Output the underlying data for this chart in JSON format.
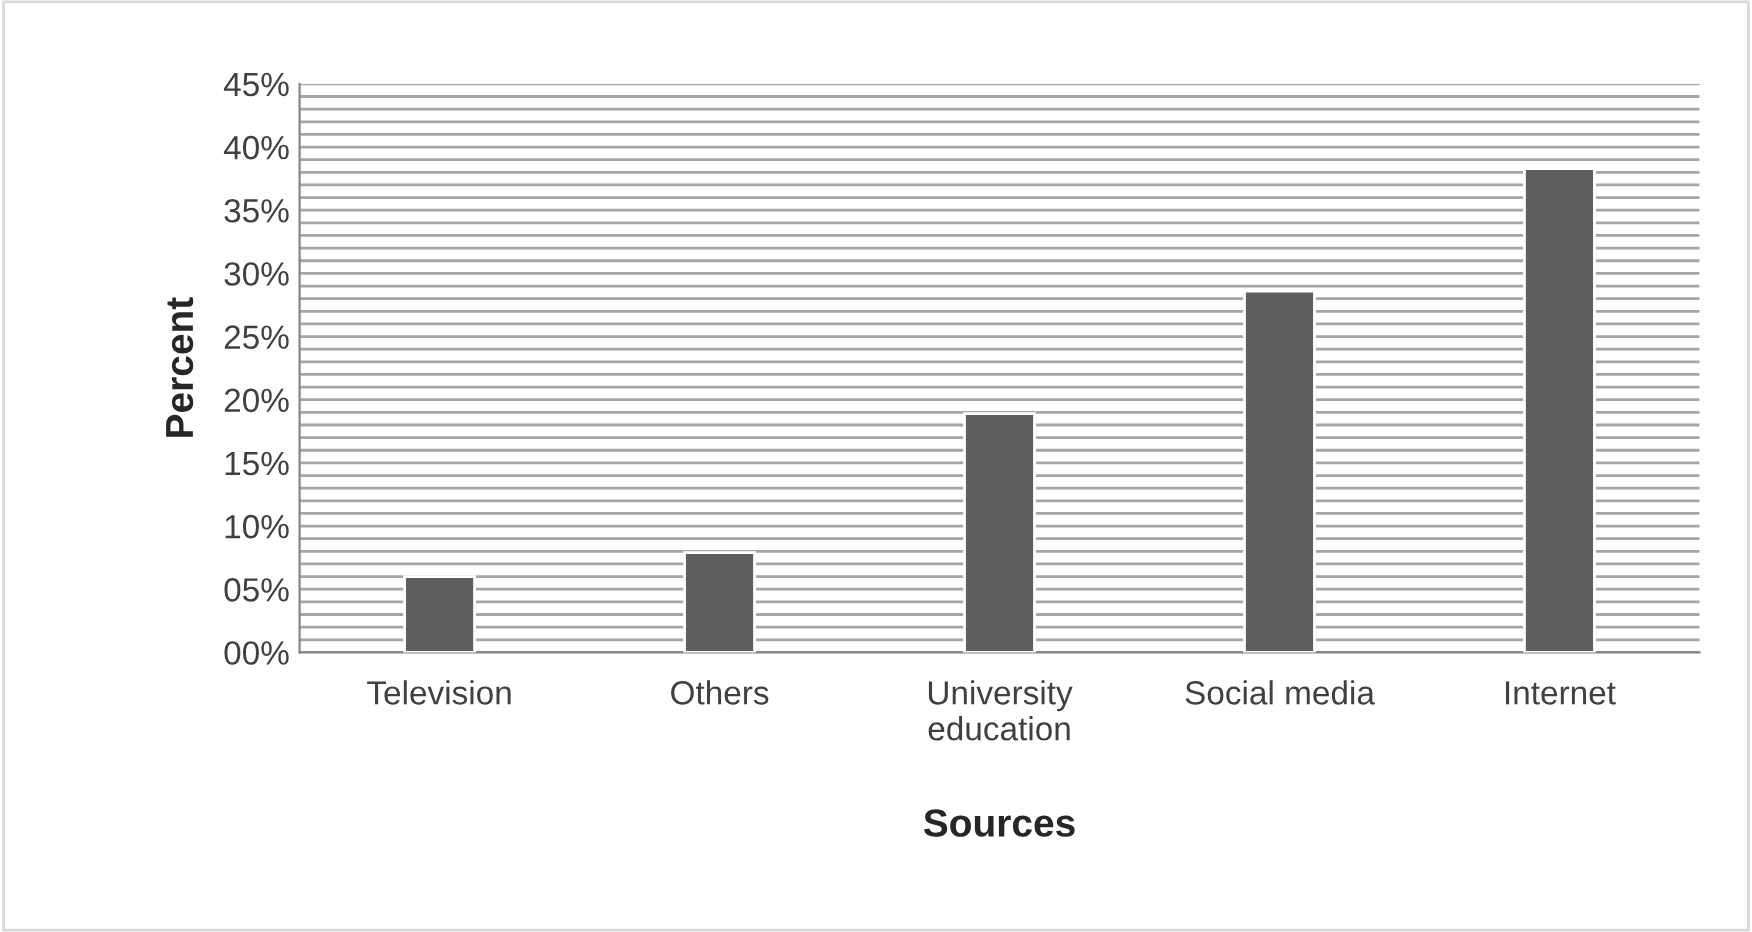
{
  "chart_data": {
    "type": "bar",
    "xlabel": "Sources",
    "ylabel": "Percent",
    "categories": [
      "Television",
      "Others",
      "University\neducation",
      "Social media",
      "Internet"
    ],
    "values": [
      6.0,
      7.9,
      18.9,
      28.6,
      38.3
    ],
    "color": "#5f5f5f",
    "ylim": [
      0,
      45
    ],
    "yticks": [
      {
        "value": 0,
        "label": "00%"
      },
      {
        "value": 1,
        "label": null
      },
      {
        "value": 2,
        "label": null
      },
      {
        "value": 3,
        "label": null
      },
      {
        "value": 4,
        "label": null
      },
      {
        "value": 5,
        "label": "05%"
      },
      {
        "value": 6,
        "label": null
      },
      {
        "value": 7,
        "label": null
      },
      {
        "value": 8,
        "label": null
      },
      {
        "value": 9,
        "label": null
      },
      {
        "value": 10,
        "label": "10%"
      },
      {
        "value": 11,
        "label": null
      },
      {
        "value": 12,
        "label": null
      },
      {
        "value": 13,
        "label": null
      },
      {
        "value": 14,
        "label": null
      },
      {
        "value": 15,
        "label": "15%"
      },
      {
        "value": 16,
        "label": null
      },
      {
        "value": 17,
        "label": null
      },
      {
        "value": 18,
        "label": null
      },
      {
        "value": 19,
        "label": null
      },
      {
        "value": 20,
        "label": "20%"
      },
      {
        "value": 21,
        "label": null
      },
      {
        "value": 22,
        "label": null
      },
      {
        "value": 23,
        "label": null
      },
      {
        "value": 24,
        "label": null
      },
      {
        "value": 25,
        "label": "25%"
      },
      {
        "value": 26,
        "label": null
      },
      {
        "value": 27,
        "label": null
      },
      {
        "value": 28,
        "label": null
      },
      {
        "value": 29,
        "label": null
      },
      {
        "value": 30,
        "label": "30%"
      },
      {
        "value": 31,
        "label": null
      },
      {
        "value": 32,
        "label": null
      },
      {
        "value": 33,
        "label": null
      },
      {
        "value": 34,
        "label": null
      },
      {
        "value": 35,
        "label": "35%"
      },
      {
        "value": 36,
        "label": null
      },
      {
        "value": 37,
        "label": null
      },
      {
        "value": 38,
        "label": null
      },
      {
        "value": 39,
        "label": null
      },
      {
        "value": 40,
        "label": "40%"
      },
      {
        "value": 41,
        "label": null
      },
      {
        "value": 42,
        "label": null
      },
      {
        "value": 43,
        "label": null
      },
      {
        "value": 44,
        "label": null
      },
      {
        "value": 45,
        "label": "45%"
      }
    ],
    "grid": "y"
  }
}
